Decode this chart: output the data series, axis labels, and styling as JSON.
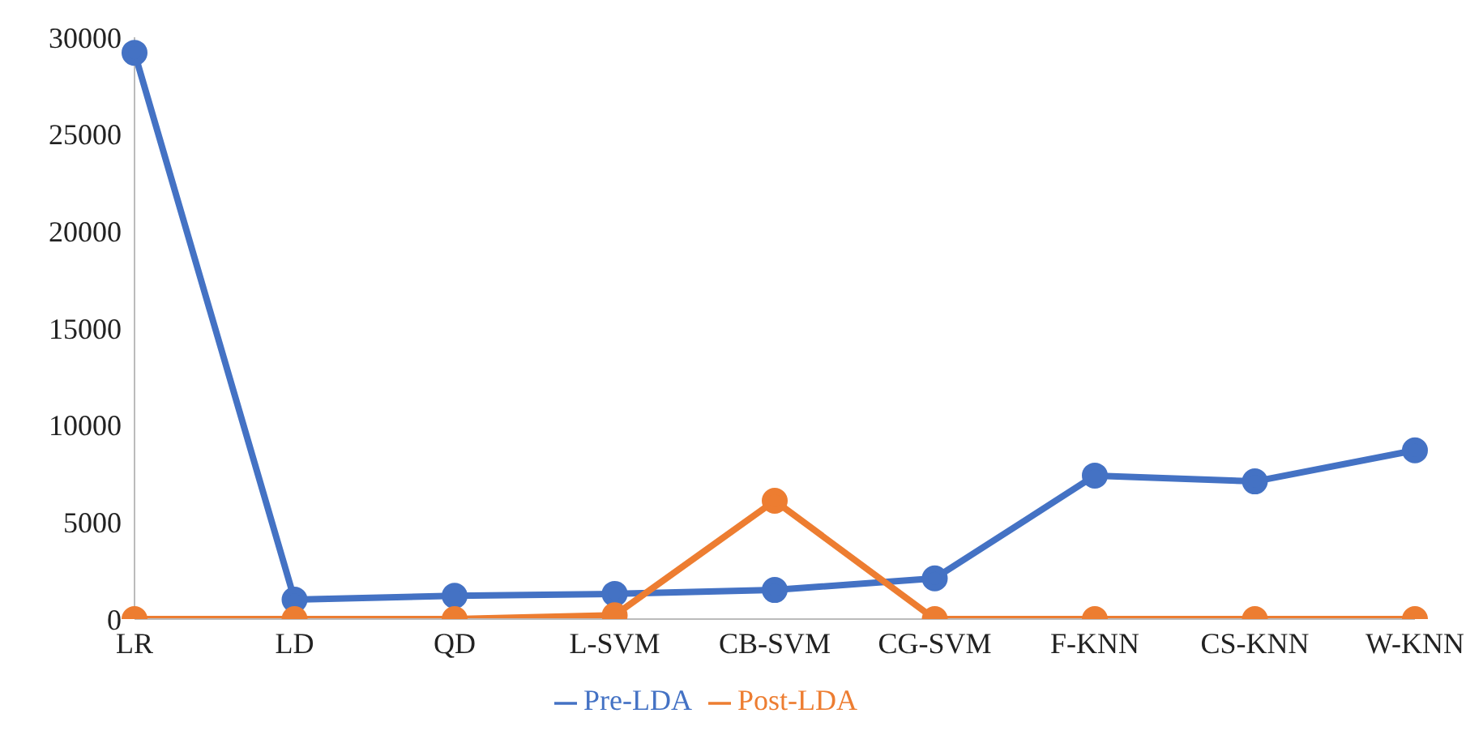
{
  "chart_data": {
    "type": "line",
    "categories": [
      "LR",
      "LD",
      "QD",
      "L-SVM",
      "CB-SVM",
      "CG-SVM",
      "F-KNN",
      "CS-KNN",
      "W-KNN"
    ],
    "series": [
      {
        "name": "Pre-LDA",
        "color": "#4472c4",
        "values": [
          29200,
          1000,
          1200,
          1300,
          1500,
          2100,
          7400,
          7100,
          8700
        ]
      },
      {
        "name": "Post-LDA",
        "color": "#ed7d31",
        "values": [
          0,
          0,
          0,
          200,
          6100,
          0,
          0,
          0,
          0
        ]
      }
    ],
    "ylim": [
      0,
      30000
    ],
    "yticks": [
      0,
      5000,
      10000,
      15000,
      20000,
      25000,
      30000
    ],
    "grid": false,
    "legend": "bottom",
    "marker": "circle",
    "line_style": "solid"
  }
}
